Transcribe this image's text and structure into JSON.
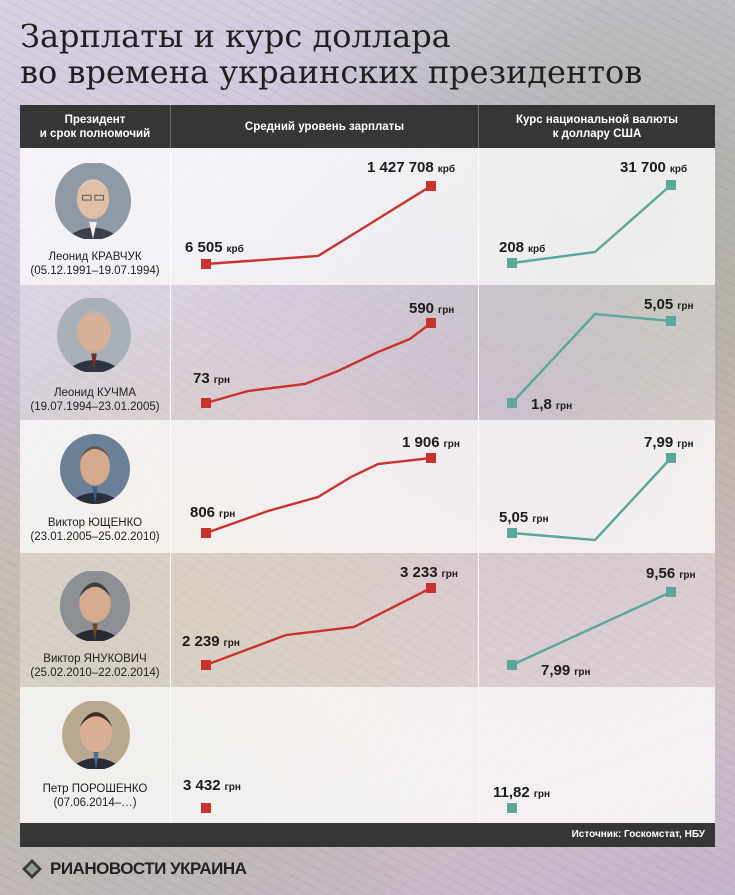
{
  "title_line1": "Зарплаты и курс доллара",
  "title_line2": "во времена украинских президентов",
  "header": {
    "col1_line1": "Президент",
    "col1_line2": "и срок полномочий",
    "col2": "Средний уровень зарплаты",
    "col3_line1": "Курс национальной валюты",
    "col3_line2": "к доллару США"
  },
  "presidents": [
    {
      "name": "Леонид КРАВЧУК",
      "term": "(05.12.1991–19.07.1994)"
    },
    {
      "name": "Леонид КУЧМА",
      "term": "(19.07.1994–23.01.2005)"
    },
    {
      "name": "Виктор ЮЩЕНКО",
      "term": "(23.01.2005–25.02.2010)"
    },
    {
      "name": "Виктор ЯНУКОВИЧ",
      "term": "(25.02.2010–22.02.2014)"
    },
    {
      "name": "Петр ПОРОШЕНКО",
      "term": "(07.06.2014–…)"
    }
  ],
  "source": "Источник: Госкомстат, НБУ",
  "logo_text": "РИАНОВОСТИ УКРАИНА",
  "colors": {
    "salary_line": "#c8322f",
    "rate_line": "#5ba89a",
    "header_bg": "#363636"
  },
  "chart_data": {
    "type": "line",
    "panels": [
      {
        "president": "Леонид КРАВЧУК",
        "salary": {
          "start": 6505,
          "end": 1427708,
          "start_label": "6 505",
          "end_label": "1 427 708",
          "unit": "крб"
        },
        "rate": {
          "start": 208,
          "end": 31700,
          "start_label": "208",
          "end_label": "31 700",
          "unit": "крб"
        }
      },
      {
        "president": "Леонид КУЧМА",
        "salary": {
          "start": 73,
          "end": 590,
          "start_label": "73",
          "end_label": "590",
          "unit": "грн"
        },
        "rate": {
          "start": 1.8,
          "end": 5.05,
          "start_label": "1,8",
          "end_label": "5,05",
          "unit": "грн"
        }
      },
      {
        "president": "Виктор ЮЩЕНКО",
        "salary": {
          "start": 806,
          "end": 1906,
          "start_label": "806",
          "end_label": "1 906",
          "unit": "грн"
        },
        "rate": {
          "start": 5.05,
          "end": 7.99,
          "start_label": "5,05",
          "end_label": "7,99",
          "unit": "грн"
        }
      },
      {
        "president": "Виктор ЯНУКОВИЧ",
        "salary": {
          "start": 2239,
          "end": 3233,
          "start_label": "2 239",
          "end_label": "3 233",
          "unit": "грн"
        },
        "rate": {
          "start": 7.99,
          "end": 9.56,
          "start_label": "7,99",
          "end_label": "9,56",
          "unit": "грн"
        }
      },
      {
        "president": "Петр ПОРОШЕНКО",
        "salary": {
          "start": 3432,
          "start_label": "3 432",
          "unit": "грн"
        },
        "rate": {
          "start": 11.82,
          "start_label": "11,82",
          "unit": "грн"
        }
      }
    ]
  }
}
